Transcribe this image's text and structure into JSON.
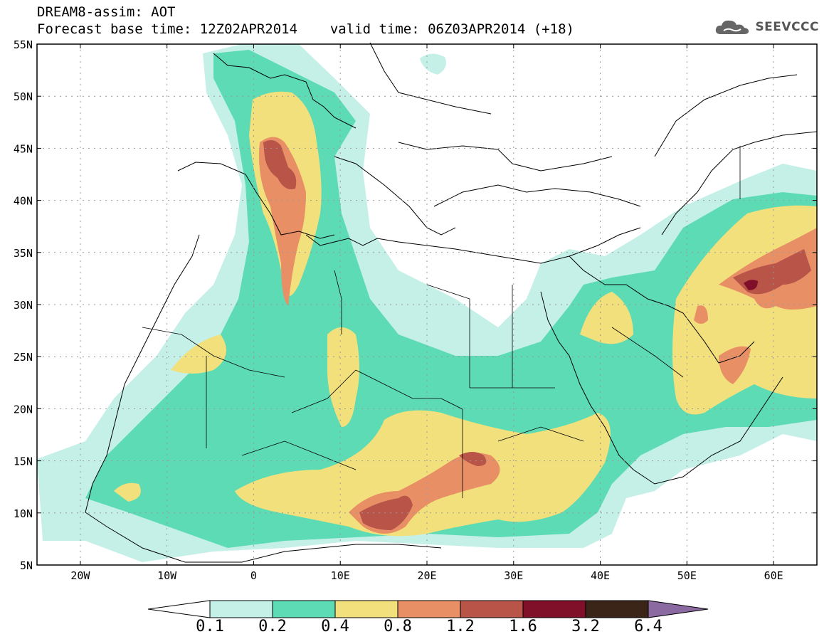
{
  "header": {
    "title": "DREAM8-assim: AOT",
    "base_time_label": "Forecast base time: 12Z02APR2014",
    "valid_time_label": "valid time: 06Z03APR2014 (+18)"
  },
  "logo": {
    "text": "SEEVCCC",
    "icon": "cloud-icon"
  },
  "map": {
    "lat_labels": [
      "55N",
      "50N",
      "45N",
      "40N",
      "35N",
      "30N",
      "25N",
      "20N",
      "15N",
      "10N",
      "5N"
    ],
    "lon_labels": [
      "20W",
      "10W",
      "0",
      "10E",
      "20E",
      "30E",
      "40E",
      "50E",
      "60E"
    ],
    "lat_range": [
      5,
      55
    ],
    "lon_range": [
      -25,
      65
    ],
    "grid": true
  },
  "colorbar": {
    "labels": [
      "0.1",
      "0.2",
      "0.4",
      "0.8",
      "1.2",
      "1.6",
      "3.2",
      "6.4"
    ],
    "colors": [
      "#c5f0e8",
      "#5ddbb4",
      "#f2e07c",
      "#e88f66",
      "#b85448",
      "#800f2a",
      "#3b2418",
      "#8a6aa0"
    ],
    "extend_low_color": "#ffffff",
    "extend_high_color": "#8a6aa0"
  }
}
